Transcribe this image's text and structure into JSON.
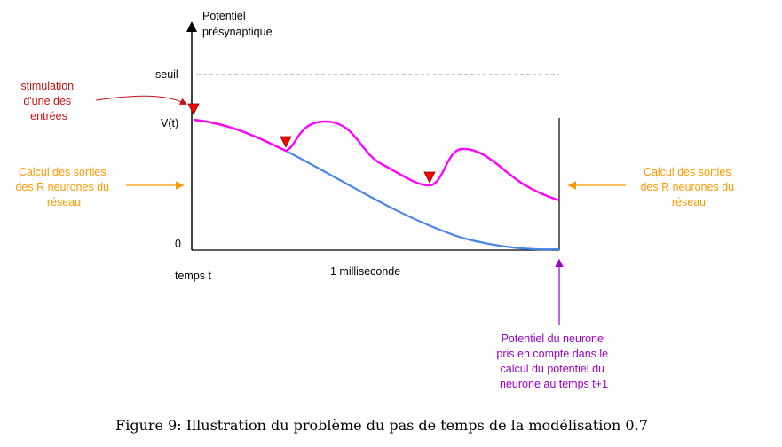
{
  "axis": {
    "y_label_line1": "Potentiel",
    "y_label_line2": "présynaptique",
    "threshold_label": "seuil",
    "vt_label": "V(t)",
    "zero_label": "0",
    "x_label": "temps t",
    "duration_label": "1 milliseconde"
  },
  "annotations": {
    "stimulation": [
      "stimulation",
      "d'une des",
      "entrées"
    ],
    "calcul_left": [
      "Calcul des sorties",
      "des R neurones du",
      "réseau"
    ],
    "calcul_right": [
      "Calcul des sorties",
      "des R neurones du",
      "réseau"
    ],
    "potentiel_note": [
      "Potentiel du neurone",
      "pris en compte dans le",
      "calcul du potentiel du",
      "neurone au temps t+1"
    ]
  },
  "caption": "Figure 9: Illustration du problème du pas de temps de la modélisation 0.7",
  "colors": {
    "stimulation": "#cc1111",
    "calcul": "#ff9900",
    "magenta_curve": "#ff00ff",
    "blue_curve": "#4a86e8",
    "potentiel_note": "#9900cc",
    "marker": "#ff0000"
  }
}
